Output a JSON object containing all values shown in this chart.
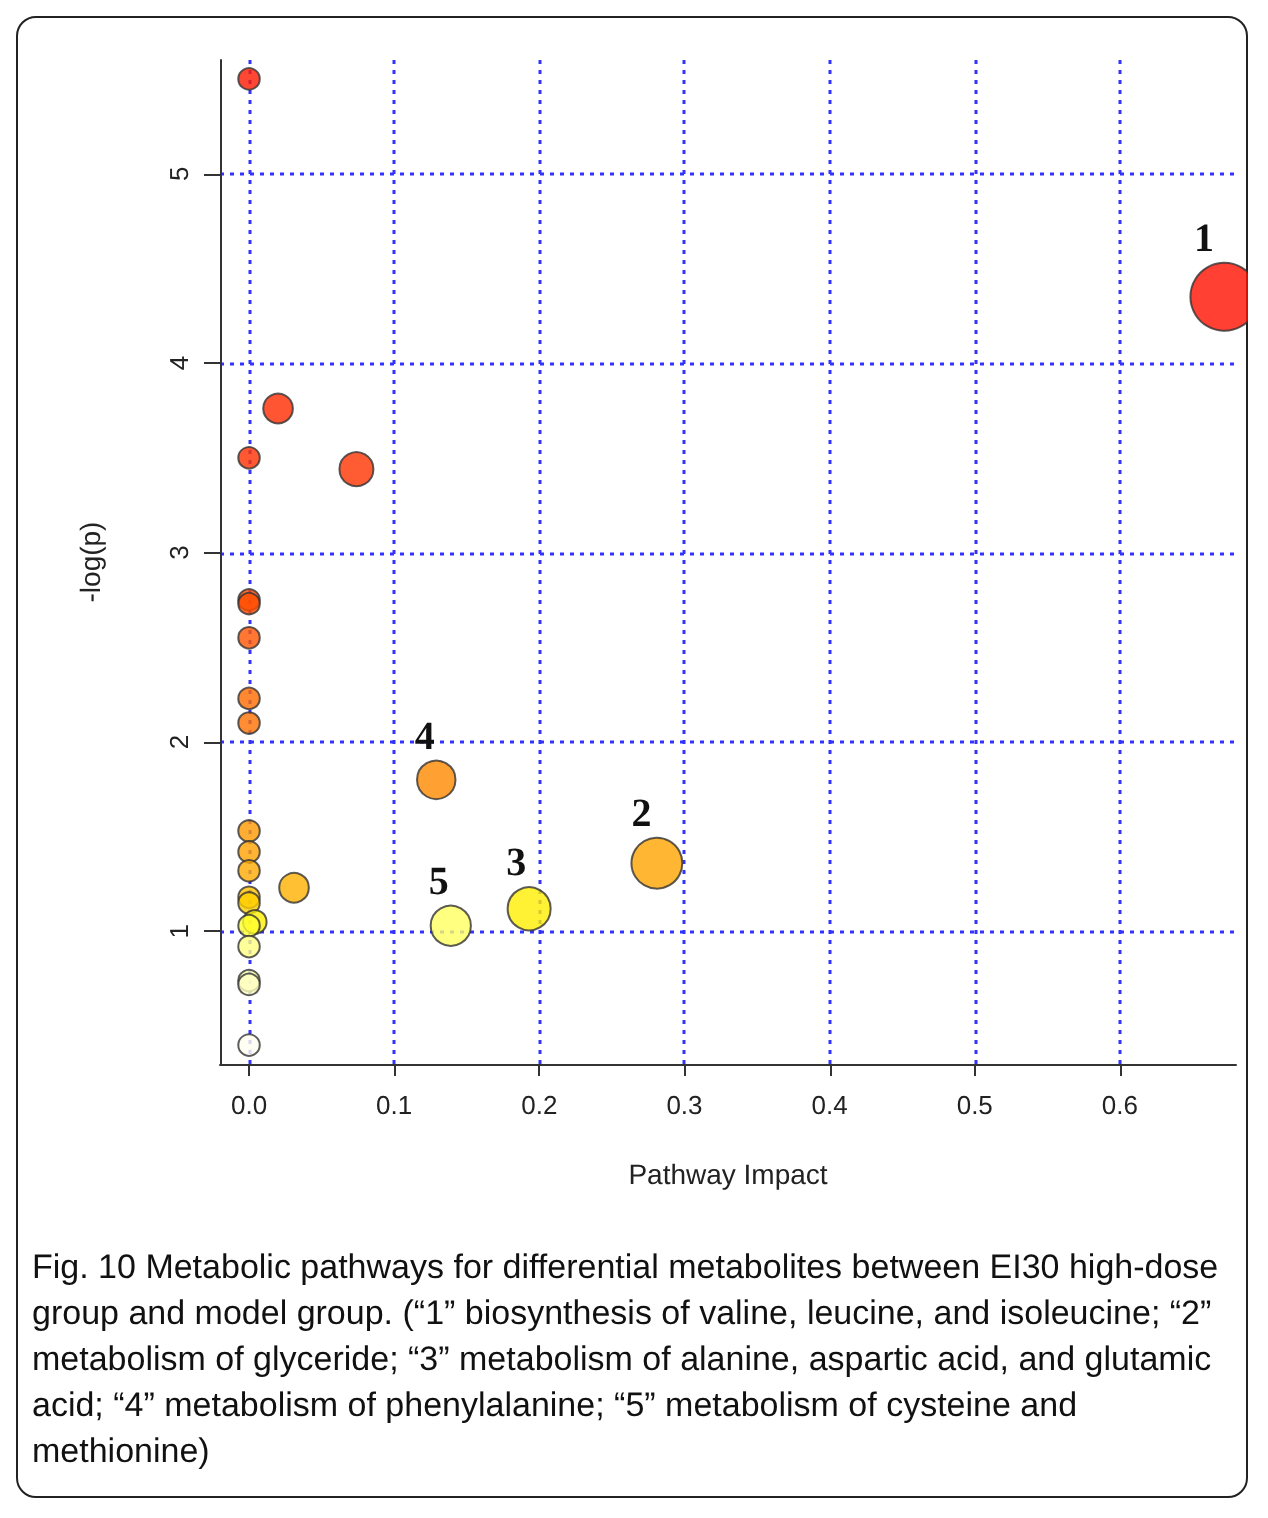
{
  "chart_data": {
    "type": "bubble",
    "xlabel": "Pathway Impact",
    "ylabel": "-log(p)",
    "x": [
      0,
      0.02,
      0,
      0.074,
      0,
      0,
      0,
      0,
      0,
      0.129,
      0,
      0,
      0,
      0.031,
      0.281,
      0,
      0,
      0.004,
      0,
      0,
      0,
      0,
      0,
      0.139,
      0.193,
      0.672
    ],
    "values": [
      5.5,
      3.76,
      3.5,
      3.44,
      2.75,
      2.73,
      2.55,
      2.23,
      2.1,
      1.8,
      1.53,
      1.42,
      1.32,
      1.23,
      1.36,
      1.18,
      1.15,
      1.05,
      1.03,
      0.92,
      0.74,
      0.72,
      0.4,
      1.03,
      1.12,
      4.35
    ],
    "sizes": [
      0.1,
      0.19,
      0.1,
      0.25,
      0.1,
      0.1,
      0.1,
      0.1,
      0.1,
      0.32,
      0.1,
      0.1,
      0.1,
      0.19,
      0.56,
      0.1,
      0.1,
      0.12,
      0.1,
      0.1,
      0.1,
      0.1,
      0.1,
      0.35,
      0.4,
      1
    ],
    "colors": [
      "#ff1a00",
      "#ff2a00",
      "#ff3000",
      "#ff3300",
      "#ff4a00",
      "#ff4c00",
      "#ff5500",
      "#ff6a00",
      "#ff7000",
      "#ff8800",
      "#ff9a00",
      "#ffa200",
      "#ffaa00",
      "#ffb000",
      "#ffa500",
      "#ffc000",
      "#ffd000",
      "#ffee00",
      "#ffff30",
      "#ffff80",
      "#ffffb0",
      "#ffffc0",
      "#fffff0",
      "#ffff60",
      "#ffee00",
      "#ff1000"
    ],
    "xlim": [
      -0.02,
      0.68
    ],
    "xticks": [
      {
        "value": 0,
        "label": "0.0"
      },
      0.1,
      0.2,
      0.3,
      0.4,
      0.5,
      0.6
    ],
    "ylim": [
      0.3,
      5.6
    ],
    "yticks": [
      1,
      2,
      3,
      4,
      5
    ],
    "grid": true,
    "marker": "circle",
    "annotations": [
      {
        "text": "1",
        "x": 0.672,
        "y": 4.35
      },
      {
        "text": "2",
        "x": 0.281,
        "y": 1.36
      },
      {
        "text": "3",
        "x": 0.193,
        "y": 1.12
      },
      {
        "text": "4",
        "x": 0.129,
        "y": 1.8
      },
      {
        "text": "5",
        "x": 0.139,
        "y": 1.03
      },
      "Fig. 10 Metabolic pathways for differential metabolites between EI30 high-dose group and model group. (“1” biosynthesis of valine, leucine, and isoleucine; “2” metabolism of glyceride; “3” metabolism of alanine, aspartic acid, and glutamic acid; “4” metabolism of phenylalanine; “5” metabolism of cysteine and methionine)"
    ]
  }
}
